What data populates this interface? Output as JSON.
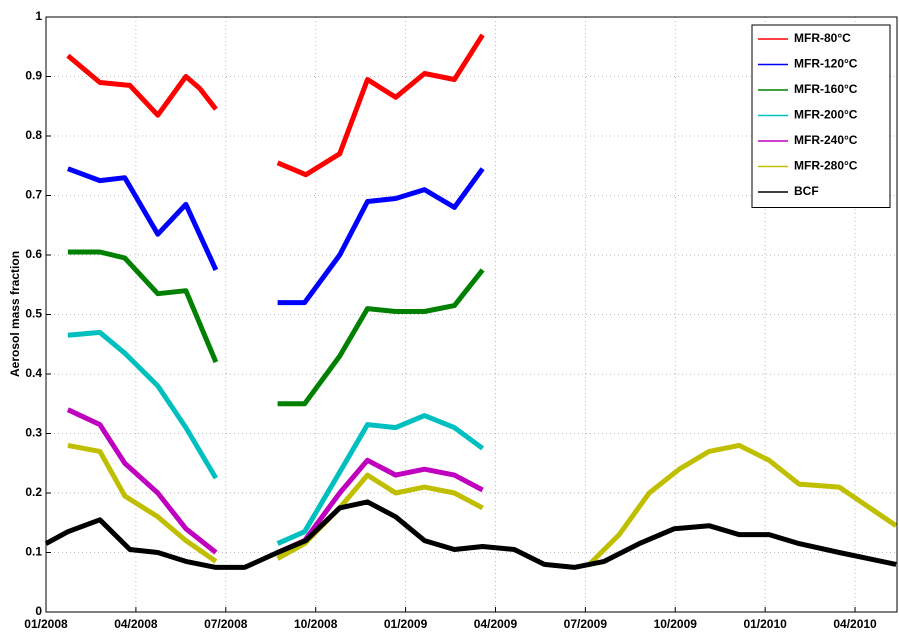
{
  "chart_data": {
    "type": "line",
    "ylabel": "Aerosol mass fraction",
    "xlim": [
      0,
      28.4
    ],
    "ylim": [
      0,
      1
    ],
    "xticks": [
      {
        "value": 0,
        "label": "01/2008"
      },
      {
        "value": 3,
        "label": "04/2008"
      },
      {
        "value": 6,
        "label": "07/2008"
      },
      {
        "value": 9,
        "label": "10/2008"
      },
      {
        "value": 12,
        "label": "01/2009"
      },
      {
        "value": 15,
        "label": "04/2009"
      },
      {
        "value": 18,
        "label": "07/2009"
      },
      {
        "value": 21,
        "label": "10/2009"
      },
      {
        "value": 24,
        "label": "01/2010"
      },
      {
        "value": 27,
        "label": "04/2010"
      }
    ],
    "yticks": [
      0,
      0.1,
      0.2,
      0.3,
      0.4,
      0.5,
      0.6,
      0.7,
      0.8,
      0.9,
      1
    ],
    "grid": true,
    "legend": "upper right",
    "series": [
      {
        "name": "MFR-80°C",
        "color": "#ff0000",
        "x": [
          0.73,
          1.8,
          2.8,
          3.73,
          4.67,
          5.13,
          5.67,
          null,
          7.73,
          8.67,
          9.8,
          10.73,
          11.67,
          12.63,
          13.63,
          14.57
        ],
        "values": [
          0.935,
          0.89,
          0.885,
          0.835,
          0.9,
          0.88,
          0.845,
          null,
          0.755,
          0.735,
          0.77,
          0.895,
          0.865,
          0.905,
          0.895,
          0.97
        ]
      },
      {
        "name": "MFR-120°C",
        "color": "#0000ff",
        "x": [
          0.73,
          1.8,
          2.63,
          3.73,
          4.67,
          5.67,
          null,
          7.73,
          8.63,
          9.8,
          10.73,
          11.67,
          12.63,
          13.63,
          14.57
        ],
        "values": [
          0.745,
          0.725,
          0.73,
          0.635,
          0.685,
          0.575,
          null,
          0.52,
          0.52,
          0.6,
          0.69,
          0.695,
          0.71,
          0.68,
          0.745
        ]
      },
      {
        "name": "MFR-160°C",
        "color": "#008000",
        "x": [
          0.73,
          1.8,
          2.63,
          3.73,
          4.67,
          5.67,
          null,
          7.73,
          8.63,
          9.8,
          10.73,
          11.67,
          12.63,
          13.63,
          14.57
        ],
        "values": [
          0.605,
          0.605,
          0.595,
          0.535,
          0.54,
          0.42,
          null,
          0.35,
          0.35,
          0.43,
          0.51,
          0.505,
          0.505,
          0.515,
          0.575
        ]
      },
      {
        "name": "MFR-200°C",
        "color": "#00bfbf",
        "x": [
          0.73,
          1.8,
          2.63,
          3.73,
          4.67,
          5.67,
          null,
          7.73,
          8.63,
          9.8,
          10.73,
          11.67,
          12.63,
          13.63,
          14.57
        ],
        "values": [
          0.465,
          0.47,
          0.435,
          0.38,
          0.31,
          0.225,
          null,
          0.115,
          0.135,
          0.235,
          0.315,
          0.31,
          0.33,
          0.31,
          0.275
        ]
      },
      {
        "name": "MFR-240°C",
        "color": "#bf00bf",
        "x": [
          0.73,
          1.8,
          2.63,
          3.73,
          4.67,
          5.67,
          null,
          7.73,
          8.63,
          9.8,
          10.73,
          11.67,
          12.63,
          13.63,
          14.57
        ],
        "values": [
          0.34,
          0.315,
          0.25,
          0.2,
          0.14,
          0.1,
          null,
          0.1,
          0.12,
          0.2,
          0.255,
          0.23,
          0.24,
          0.23,
          0.205
        ]
      },
      {
        "name": "MFR-280°C",
        "color": "#bfbf00",
        "x": [
          0.73,
          1.8,
          2.63,
          3.73,
          4.67,
          5.67,
          null,
          7.73,
          8.63,
          9.8,
          10.73,
          11.67,
          12.63,
          13.63,
          14.57,
          null,
          18.13,
          19.13,
          20.13,
          21.13,
          22.13,
          23.13,
          24.13,
          25.13,
          26.47,
          28.37
        ],
        "values": [
          0.28,
          0.27,
          0.195,
          0.16,
          0.12,
          0.085,
          null,
          0.09,
          0.115,
          0.175,
          0.23,
          0.2,
          0.21,
          0.2,
          0.175,
          null,
          0.08,
          0.13,
          0.2,
          0.24,
          0.27,
          0.28,
          0.255,
          0.215,
          0.21,
          0.145
        ]
      },
      {
        "name": "BCF",
        "color": "#000000",
        "x": [
          0,
          0.73,
          1.8,
          2.8,
          3.73,
          4.67,
          5.67,
          6.63,
          7.73,
          8.67,
          9.8,
          10.73,
          11.67,
          12.63,
          13.63,
          14.57,
          15.63,
          16.63,
          17.63,
          18.63,
          19.8,
          20.97,
          22.13,
          23.13,
          24.13,
          25.13,
          26.47,
          28.37
        ],
        "values": [
          0.115,
          0.135,
          0.155,
          0.105,
          0.1,
          0.085,
          0.075,
          0.075,
          0.1,
          0.12,
          0.175,
          0.185,
          0.16,
          0.12,
          0.105,
          0.11,
          0.105,
          0.08,
          0.075,
          0.085,
          0.115,
          0.14,
          0.145,
          0.13,
          0.13,
          0.115,
          0.1,
          0.08
        ]
      }
    ]
  }
}
